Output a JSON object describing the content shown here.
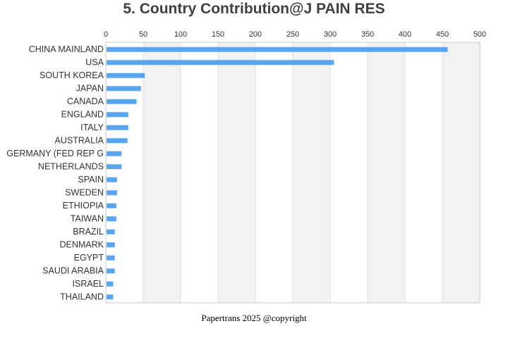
{
  "title": "5. Country Contribution@J PAIN RES",
  "footer": "Papertrans 2025 @copyright",
  "colors": {
    "bar": "#5aa5f0",
    "band": "#f2f2f2",
    "grid": "#e0e0e0",
    "axis": "#c8c8c8"
  },
  "chart_data": {
    "type": "bar",
    "orientation": "horizontal",
    "x_axis_position": "top",
    "categories": [
      "CHINA MAINLAND",
      "USA",
      "SOUTH KOREA",
      "JAPAN",
      "CANADA",
      "ENGLAND",
      "ITALY",
      "AUSTRALIA",
      "GERMANY (FED REP G",
      "NETHERLANDS",
      "SPAIN",
      "SWEDEN",
      "ETHIOPIA",
      "TAIWAN",
      "BRAZIL",
      "DENMARK",
      "EGYPT",
      "SAUDI ARABIA",
      "ISRAEL",
      "THAILAND"
    ],
    "values": [
      457,
      305,
      52,
      47,
      41,
      30,
      30,
      29,
      21,
      21,
      15,
      15,
      14,
      14,
      12,
      12,
      12,
      12,
      10,
      10
    ],
    "xlim": [
      0,
      500
    ],
    "xticks": [
      0,
      50,
      100,
      150,
      200,
      250,
      300,
      350,
      400,
      450,
      500
    ],
    "title": "5. Country Contribution@J PAIN RES",
    "xlabel": "",
    "ylabel": "",
    "grid": true,
    "alternating_bands": true
  }
}
